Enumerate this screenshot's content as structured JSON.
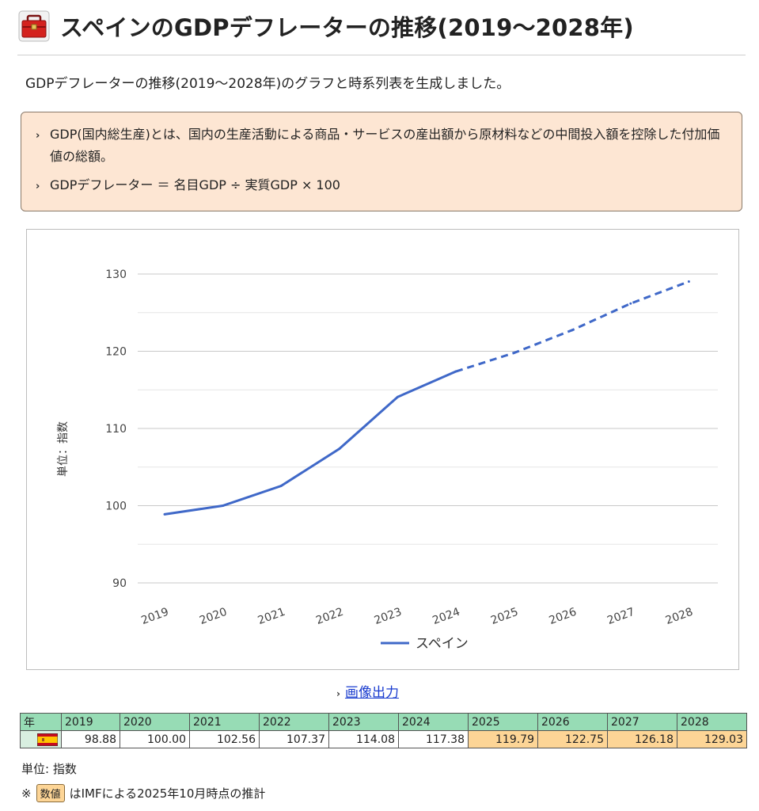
{
  "page": {
    "title": "スペインのGDPデフレーターの推移(2019〜2028年)",
    "title_icon": "toolbox-icon",
    "intro": "GDPデフレーターの推移(2019〜2028年)のグラフと時系列表を生成しました。"
  },
  "info": {
    "items": [
      "GDP(国内総生産)とは、国内の生産活動による商品・サービスの産出額から原材料などの中間投入額を控除した付加価値の総額。",
      "GDPデフレーター ＝ 名目GDP ÷ 実質GDP × 100"
    ]
  },
  "chart_data": {
    "type": "line",
    "x": [
      "2019",
      "2020",
      "2021",
      "2022",
      "2023",
      "2024",
      "2025",
      "2026",
      "2027",
      "2028"
    ],
    "series": [
      {
        "name": "スペイン",
        "values": [
          98.88,
          100.0,
          102.56,
          107.37,
          114.08,
          117.38,
          119.79,
          122.75,
          126.18,
          129.03
        ],
        "color": "#3f68c8",
        "forecast_from": "2024"
      }
    ],
    "ylabel": "単位：指数",
    "xlabel": "",
    "ylim": [
      90,
      130
    ],
    "yticks": [
      90,
      100,
      110,
      120,
      130
    ],
    "grid": true,
    "legend": "bottom"
  },
  "export": {
    "label": "画像出力"
  },
  "table": {
    "header_label": "年",
    "years": [
      "2019",
      "2020",
      "2021",
      "2022",
      "2023",
      "2024",
      "2025",
      "2026",
      "2027",
      "2028"
    ],
    "values": [
      "98.88",
      "100.00",
      "102.56",
      "107.37",
      "114.08",
      "117.38",
      "119.79",
      "122.75",
      "126.18",
      "129.03"
    ],
    "forecast_from_index": 6,
    "forecast_color": "#fdd596",
    "header_color": "#97dcb5"
  },
  "notes": {
    "unit": "単位: 指数",
    "footnote_prefix": "※",
    "footnote_key": "数値",
    "footnote_text": "はIMFによる2025年10月時点の推計"
  }
}
